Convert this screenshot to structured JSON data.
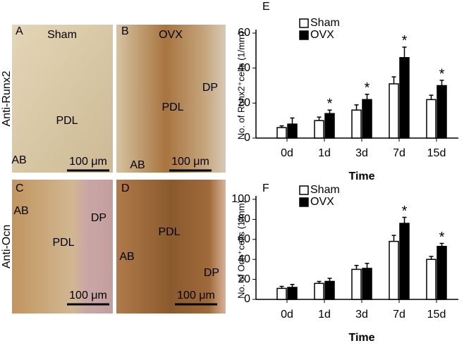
{
  "figure": {
    "columns": [
      "Sham",
      "OVX"
    ],
    "rows": [
      "Anti-Runx2",
      "Anti-Ocn"
    ],
    "panels": [
      {
        "letter": "A",
        "labels": [
          "PDL",
          "AB"
        ],
        "scale": "100 μm"
      },
      {
        "letter": "B",
        "labels": [
          "DP",
          "PDL",
          "AB"
        ],
        "scale": "100 μm"
      },
      {
        "letter": "C",
        "labels": [
          "AB",
          "DP",
          "PDL"
        ],
        "scale": "100 μm"
      },
      {
        "letter": "D",
        "labels": [
          "PDL",
          "AB",
          "DP"
        ],
        "scale": "100 μm"
      }
    ]
  },
  "chart_data": [
    {
      "type": "bar",
      "label": "E",
      "ylabel": "No. of Runx2⁺cells (1/mm)",
      "xlabel": "Time",
      "categories": [
        "0d",
        "1d",
        "3d",
        "7d",
        "15d"
      ],
      "series": [
        {
          "name": "Sham",
          "color": "#ffffff",
          "values": [
            6,
            10,
            16,
            31,
            22
          ],
          "errors": [
            1,
            2,
            3,
            4,
            2.5
          ]
        },
        {
          "name": "OVX",
          "color": "#000000",
          "values": [
            8,
            14,
            22,
            46,
            30
          ],
          "errors": [
            3.5,
            2,
            3,
            6,
            3
          ],
          "significance": [
            null,
            "*",
            "*",
            "*",
            "*"
          ]
        }
      ],
      "ylim": [
        0,
        60
      ],
      "yticks": [
        0,
        20,
        40,
        60
      ]
    },
    {
      "type": "bar",
      "label": "F",
      "ylabel": "No. of Ocn⁺cells (1/mm)",
      "xlabel": "Time",
      "categories": [
        "0d",
        "1d",
        "3d",
        "7d",
        "15d"
      ],
      "series": [
        {
          "name": "Sham",
          "color": "#ffffff",
          "values": [
            11,
            16,
            30,
            58,
            40
          ],
          "errors": [
            2,
            2,
            4,
            6,
            3
          ]
        },
        {
          "name": "OVX",
          "color": "#000000",
          "values": [
            12,
            18,
            31,
            76,
            53
          ],
          "errors": [
            3,
            3,
            5,
            6,
            3
          ],
          "significance": [
            null,
            null,
            null,
            "*",
            "*"
          ]
        }
      ],
      "ylim": [
        0,
        100
      ],
      "yticks": [
        0,
        20,
        40,
        60,
        80,
        100
      ]
    }
  ]
}
